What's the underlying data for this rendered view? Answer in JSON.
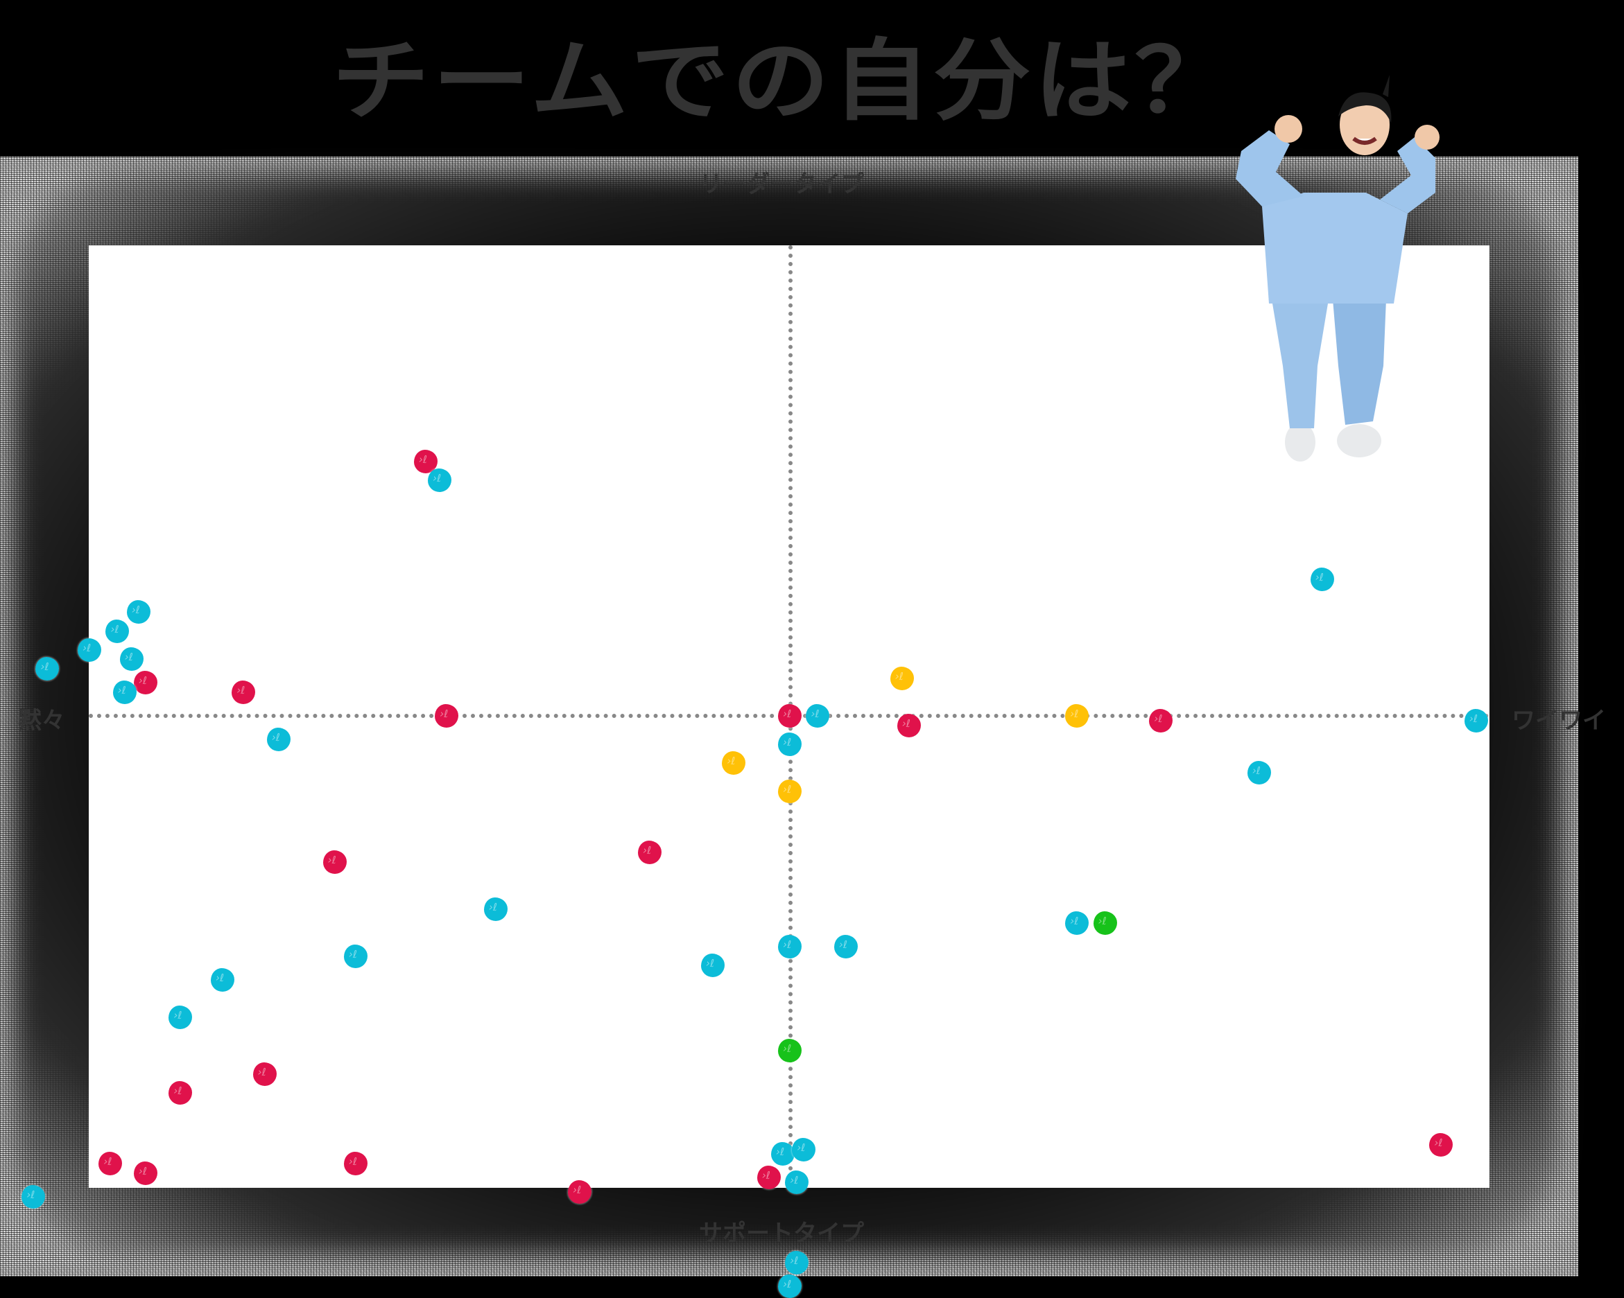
{
  "title": "チームでの自分は？",
  "axes": {
    "top": "リーダータイプ",
    "bottom": "サポートタイプ",
    "left": "黙々",
    "right": "ワイワイ"
  },
  "colors": {
    "background": "#000000",
    "plot": "#ffffff",
    "axis_line": "#888888",
    "label_text": "#333333",
    "red": "#e0124b",
    "cyan": "#0cbcd8",
    "yellow": "#ffc107",
    "green": "#17c21a"
  },
  "illustration": "person-in-blue-workwear-pointing-at-self",
  "chart_data": {
    "type": "scatter",
    "title": "チームでの自分は？",
    "xlabel_left": "黙々",
    "xlabel_right": "ワイワイ",
    "ylabel_top": "リーダータイプ",
    "ylabel_bottom": "サポートタイプ",
    "xlim": [
      -1,
      1
    ],
    "ylim": [
      -1,
      1
    ],
    "grid": false,
    "quadrant_lines": {
      "x": 0,
      "y": 0,
      "style": "dotted"
    },
    "legend": null,
    "series": [
      {
        "name": "red",
        "color": "#e0124b",
        "points": [
          [
            -0.52,
            0.54
          ],
          [
            -0.92,
            0.07
          ],
          [
            -0.78,
            0.05
          ],
          [
            -0.49,
            0.0
          ],
          [
            0.0,
            0.0
          ],
          [
            0.17,
            -0.02
          ],
          [
            0.53,
            -0.01
          ],
          [
            -0.2,
            -0.29
          ],
          [
            -0.65,
            -0.31
          ],
          [
            -0.87,
            -0.8
          ],
          [
            -0.75,
            -0.76
          ],
          [
            -0.97,
            -0.95
          ],
          [
            -0.92,
            -0.97
          ],
          [
            -0.62,
            -0.95
          ],
          [
            -0.3,
            -1.01
          ],
          [
            -0.03,
            -0.98
          ],
          [
            0.93,
            -0.91
          ]
        ]
      },
      {
        "name": "cyan",
        "color": "#0cbcd8",
        "points": [
          [
            -0.5,
            0.5
          ],
          [
            -0.93,
            0.22
          ],
          [
            -0.96,
            0.18
          ],
          [
            -1.0,
            0.14
          ],
          [
            -0.94,
            0.12
          ],
          [
            -1.06,
            0.1
          ],
          [
            -0.95,
            0.05
          ],
          [
            -0.73,
            -0.05
          ],
          [
            0.04,
            0.0
          ],
          [
            0.0,
            -0.06
          ],
          [
            0.98,
            -0.01
          ],
          [
            0.67,
            -0.12
          ],
          [
            0.76,
            0.29
          ],
          [
            -0.42,
            -0.41
          ],
          [
            -0.62,
            -0.51
          ],
          [
            -0.81,
            -0.56
          ],
          [
            -0.87,
            -0.64
          ],
          [
            -0.11,
            -0.53
          ],
          [
            0.0,
            -0.49
          ],
          [
            0.08,
            -0.49
          ],
          [
            0.41,
            -0.44
          ],
          [
            -0.01,
            -0.93
          ],
          [
            0.02,
            -0.92
          ],
          [
            0.01,
            -0.99
          ],
          [
            -1.08,
            -1.02
          ],
          [
            0.01,
            -1.16
          ],
          [
            0.0,
            -1.21
          ]
        ]
      },
      {
        "name": "yellow",
        "color": "#ffc107",
        "points": [
          [
            0.16,
            0.08
          ],
          [
            0.41,
            0.0
          ],
          [
            -0.08,
            -0.1
          ],
          [
            0.0,
            -0.16
          ]
        ]
      },
      {
        "name": "green",
        "color": "#17c21a",
        "points": [
          [
            0.45,
            -0.44
          ],
          [
            0.0,
            -0.71
          ]
        ]
      }
    ]
  }
}
